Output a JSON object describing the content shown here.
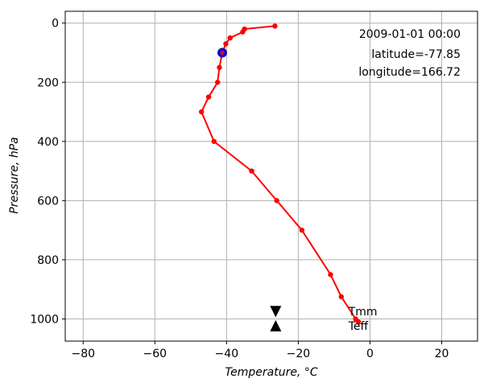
{
  "chart_data": {
    "type": "line",
    "xlabel": "Temperature, °C",
    "ylabel": "Pressure, hPa",
    "xlim": [
      -85,
      30
    ],
    "ylim": [
      1075,
      -40
    ],
    "y_inverted": true,
    "grid": true,
    "xticks": [
      -80,
      -60,
      -40,
      -20,
      0,
      20
    ],
    "yticks": [
      0,
      200,
      400,
      600,
      800,
      1000
    ],
    "xtick_labels": [
      "−80",
      "−60",
      "−40",
      "−20",
      "0",
      "20"
    ],
    "ytick_labels": [
      "0",
      "200",
      "400",
      "600",
      "800",
      "1000"
    ],
    "annotations": {
      "datetime": "2009-01-01 00:00",
      "latitude": "latitude=-77.85",
      "longitude": "longitude=166.72"
    },
    "series": [
      {
        "color": "#ff0000",
        "marker": "circle",
        "points": [
          {
            "t": -26.5,
            "p": 10
          },
          {
            "t": -35.0,
            "p": 20
          },
          {
            "t": -35.5,
            "p": 30
          },
          {
            "t": -39.0,
            "p": 50
          },
          {
            "t": -40.2,
            "p": 70
          },
          {
            "t": -41.2,
            "p": 100
          },
          {
            "t": -42.0,
            "p": 150
          },
          {
            "t": -42.5,
            "p": 200
          },
          {
            "t": -45.0,
            "p": 250
          },
          {
            "t": -47.0,
            "p": 300
          },
          {
            "t": -43.5,
            "p": 400
          },
          {
            "t": -33.0,
            "p": 500
          },
          {
            "t": -26.0,
            "p": 600
          },
          {
            "t": -19.0,
            "p": 700
          },
          {
            "t": -11.0,
            "p": 850
          },
          {
            "t": -8.0,
            "p": 925
          },
          {
            "t": -4.0,
            "p": 1000
          },
          {
            "t": -3.2,
            "p": 1010
          }
        ]
      }
    ],
    "highlight_point": {
      "t": -41.2,
      "p": 100,
      "color": "#0000ff"
    },
    "markers": [
      {
        "label": "Tmm",
        "t": -26.3,
        "p": 975,
        "symbol": "triangle-down"
      },
      {
        "label": "Teff",
        "t": -26.3,
        "p": 1023,
        "symbol": "triangle-up"
      }
    ]
  }
}
